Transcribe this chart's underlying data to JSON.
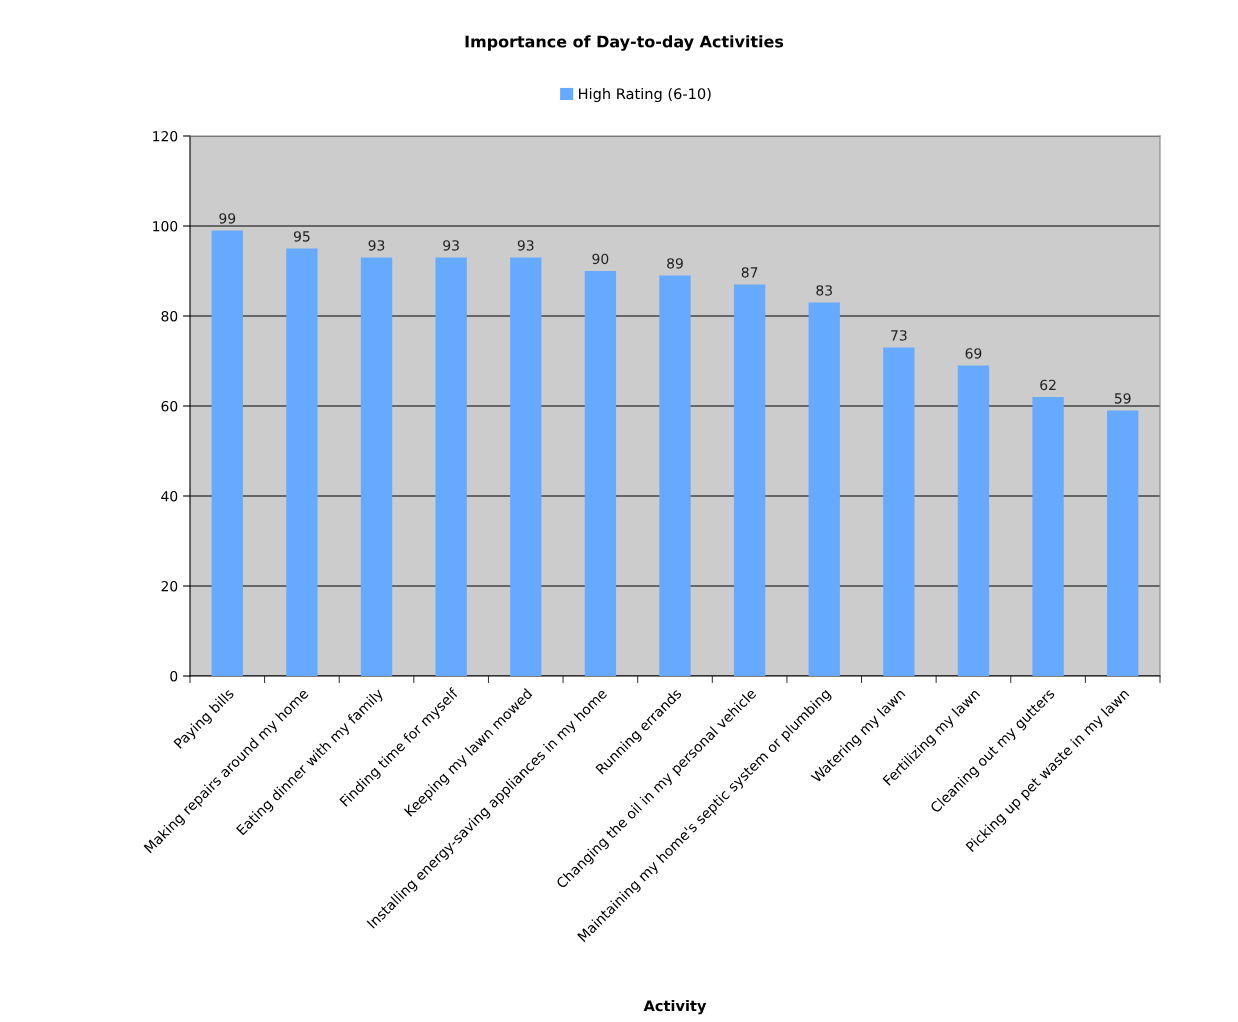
{
  "chart_data": {
    "type": "bar",
    "title": "Importance of Day-to-day Activities",
    "xlabel": "Activity",
    "categories": [
      "Paying bills",
      "Making repairs around my home",
      "Eating dinner with my family",
      "Finding time for myself",
      "Keeping my lawn mowed",
      "Installing energy-saving appliances in my home",
      "Running errands",
      "Changing the oil in my personal vehicle",
      "Maintaining my home's septic system or plumbing",
      "Watering my lawn",
      "Fertilizing my lawn",
      "Cleaning out my gutters",
      "Picking up pet waste in my lawn"
    ],
    "series": [
      {
        "name": "High Rating (6-10)",
        "color": "#66aaff",
        "values": [
          99,
          95,
          93,
          93,
          93,
          90,
          89,
          87,
          83,
          73,
          69,
          62,
          59
        ]
      }
    ],
    "ylim": [
      0,
      120
    ],
    "yticks": [
      0,
      20,
      40,
      60,
      80,
      100,
      120
    ],
    "grid": "y",
    "legend": "top",
    "data_labels": true
  }
}
